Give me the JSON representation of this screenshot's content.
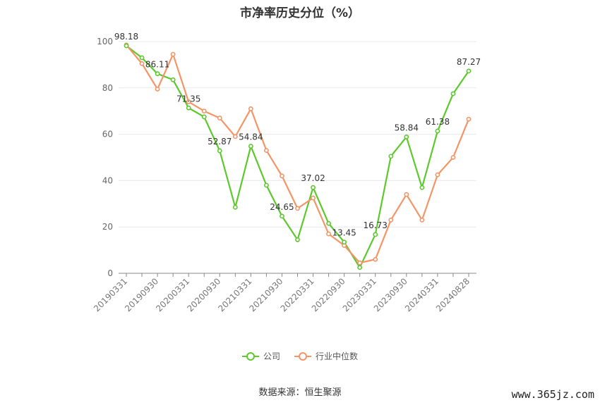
{
  "title": "市净率历史分位（%）",
  "source": "数据来源：恒生聚源",
  "watermark": "www.365jz.com",
  "colors": {
    "company": "#5cc92c",
    "industry": "#f59467",
    "grid": "#e6e9ef",
    "axis": "#888888"
  },
  "chart_data": {
    "type": "line",
    "ylim": [
      0,
      100
    ],
    "yticks": [
      0,
      20,
      40,
      60,
      80,
      100
    ],
    "x_tick_labels": [
      "20190331",
      "20190930",
      "20200331",
      "20200930",
      "20210331",
      "20210930",
      "20220331",
      "20220930",
      "20230331",
      "20230930",
      "20240331",
      "20240828"
    ],
    "x": [
      "20190331",
      "20190630",
      "20190930",
      "20191231",
      "20200331",
      "20200630",
      "20200930",
      "20201231",
      "20210331",
      "20210630",
      "20210930",
      "20211231",
      "20220331",
      "20220630",
      "20220930",
      "20221231",
      "20230331",
      "20230630",
      "20230930",
      "20231231",
      "20240331",
      "20240630",
      "20240828"
    ],
    "series": [
      {
        "name": "公司",
        "color": "#5cc92c",
        "values": [
          98.18,
          93,
          86.11,
          83.5,
          71.35,
          67.5,
          52.87,
          28.5,
          54.84,
          38,
          24.65,
          14.5,
          37.02,
          21.5,
          13.45,
          2.5,
          16.73,
          50.5,
          58.84,
          37,
          61.38,
          77.5,
          87.27
        ],
        "labels": {
          "0": "98.18",
          "2": "86.11",
          "4": "71.35",
          "6": "52.87",
          "8": "54.84",
          "10": "24.65",
          "12": "37.02",
          "14": "13.45",
          "16": "16.73",
          "18": "58.84",
          "20": "61.38",
          "22": "87.27"
        }
      },
      {
        "name": "行业中位数",
        "color": "#f59467",
        "values": [
          98.5,
          90.5,
          79.5,
          94.5,
          74,
          70,
          67,
          59,
          71,
          53,
          42,
          28,
          32.5,
          17,
          12,
          4.5,
          6,
          23,
          34,
          23,
          42.5,
          50,
          66.5
        ]
      }
    ]
  }
}
